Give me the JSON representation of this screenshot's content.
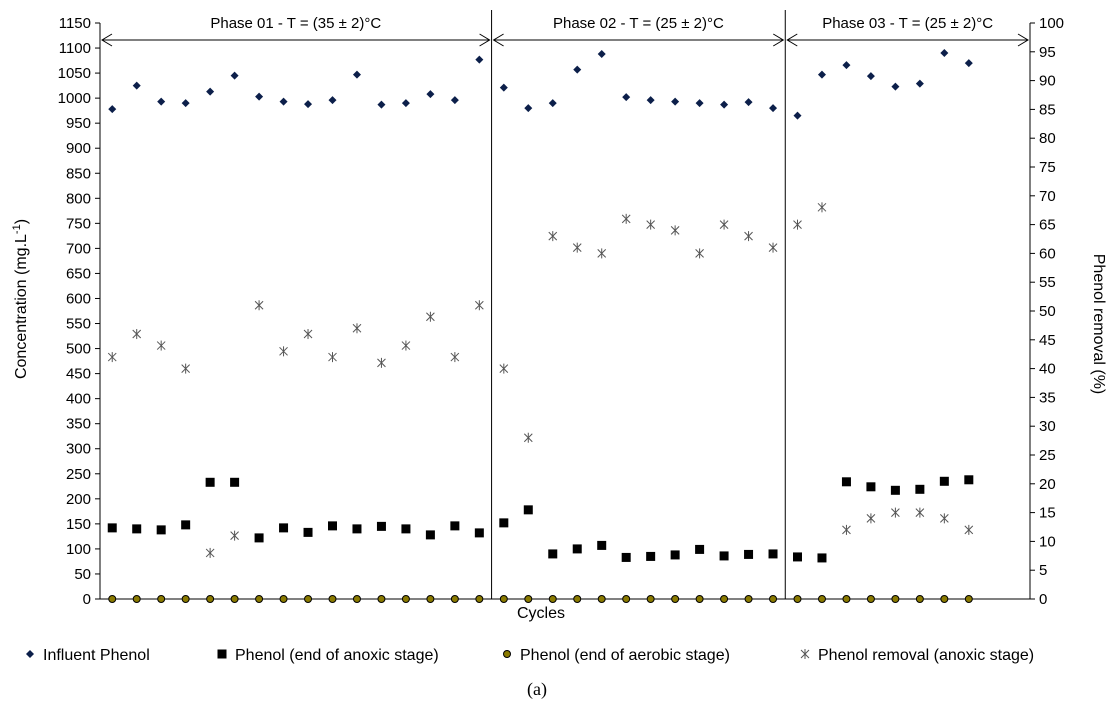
{
  "chart_data": {
    "type": "scatter",
    "xlabel": "Cycles",
    "ylabel": "Concentration (mg.L",
    "ylabel_superscript": "-1",
    "ylabel_close": ")",
    "y2label": "Phenol removal (%)",
    "ylim": [
      0,
      1150
    ],
    "yticks": [
      0,
      50,
      100,
      150,
      200,
      250,
      300,
      350,
      400,
      450,
      500,
      550,
      600,
      650,
      700,
      750,
      800,
      850,
      900,
      950,
      1000,
      1050,
      1100,
      1150
    ],
    "y2lim": [
      0,
      100
    ],
    "y2ticks": [
      0,
      5,
      10,
      15,
      20,
      25,
      30,
      35,
      40,
      45,
      50,
      55,
      60,
      65,
      70,
      75,
      80,
      85,
      90,
      95,
      100
    ],
    "x_count": 36,
    "phase_boundaries": [
      16.5,
      28.5
    ],
    "phases": [
      {
        "label": "Phase 01 - T = (35 ± 2)°C",
        "start": 0.5,
        "end": 16.5
      },
      {
        "label": "Phase 02 - T = (25 ± 2)°C",
        "start": 16.5,
        "end": 28.5
      },
      {
        "label": "Phase 03 - T = (25 ± 2)°C",
        "start": 28.5,
        "end": 37.0
      }
    ],
    "series": [
      {
        "name": "Influent Phenol",
        "marker": "diamond",
        "axis": "left",
        "color": "#0c1f4a",
        "values": [
          978,
          1025,
          993,
          990,
          1013,
          1045,
          1003,
          993,
          988,
          996,
          1047,
          987,
          990,
          1008,
          996,
          1077,
          1021,
          980,
          990,
          1057,
          1088,
          1002,
          996,
          993,
          990,
          987,
          992,
          980,
          965,
          1047,
          1066,
          1044,
          1023,
          1029,
          1090,
          1070
        ]
      },
      {
        "name": "Phenol (end of anoxic stage)",
        "marker": "square",
        "axis": "left",
        "color": "#000000",
        "values": [
          142,
          140,
          138,
          148,
          233,
          233,
          122,
          142,
          133,
          146,
          140,
          145,
          140,
          128,
          146,
          132,
          152,
          178,
          90,
          100,
          107,
          83,
          85,
          88,
          99,
          86,
          89,
          90,
          84,
          82,
          234,
          224,
          217,
          219,
          235,
          238
        ]
      },
      {
        "name": "Phenol (end of aerobic stage)",
        "marker": "circle",
        "axis": "left",
        "color": "#000000",
        "fill": "#8a7a00",
        "values": [
          0,
          0,
          0,
          0,
          0,
          0,
          0,
          0,
          0,
          0,
          0,
          0,
          0,
          0,
          0,
          0,
          0,
          0,
          0,
          0,
          0,
          0,
          0,
          0,
          0,
          0,
          0,
          0,
          0,
          0,
          0,
          0,
          0,
          0,
          0,
          0
        ]
      },
      {
        "name": "Phenol removal (anoxic stage)",
        "marker": "asterisk",
        "axis": "right",
        "color": "#555555",
        "values": [
          42,
          46,
          44,
          40,
          8,
          11,
          51,
          43,
          46,
          42,
          47,
          41,
          44,
          49,
          42,
          51,
          40,
          28,
          63,
          61,
          60,
          66,
          65,
          64,
          60,
          65,
          63,
          61,
          65,
          68,
          12,
          14,
          15,
          15,
          14,
          12
        ]
      }
    ]
  },
  "caption": "(a)"
}
